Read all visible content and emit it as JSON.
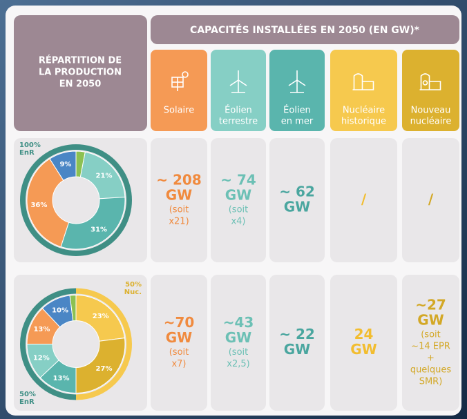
{
  "header": {
    "left_title": [
      "RÉPARTITION DE",
      "LA PRODUCTION",
      "EN 2050"
    ],
    "top_title": "CAPACITÉS INSTALLÉES EN 2050 (EN GW)*"
  },
  "columns": [
    {
      "label": [
        "Solaire"
      ],
      "color": "#f59a55",
      "text_color": "#f08a3e"
    },
    {
      "label": [
        "Éolien",
        "terrestre"
      ],
      "color": "#86cfc5",
      "text_color": "#6cc0b5"
    },
    {
      "label": [
        "Éolien",
        "en mer"
      ],
      "color": "#5ab5ad",
      "text_color": "#4aa69f"
    },
    {
      "label": [
        "Nucléaire",
        "historique"
      ],
      "color": "#f6c94e",
      "text_color": "#f2bd2f"
    },
    {
      "label": [
        "Nouveau",
        "nucléaire"
      ],
      "color": "#dcb12f",
      "text_color": "#d3a826"
    }
  ],
  "rows": [
    {
      "donut": {
        "ring": [
          {
            "value": 100,
            "color": "#3f8f85"
          }
        ],
        "ring_label": [
          "100%",
          "EnR"
        ],
        "segments": [
          {
            "value": 3,
            "color": "#8cc152"
          },
          {
            "value": 21,
            "label": "21%",
            "color": "#86cfc5"
          },
          {
            "value": 31,
            "label": "31%",
            "color": "#5ab5ad"
          },
          {
            "value": 36,
            "label": "36%",
            "color": "#f59a55"
          },
          {
            "value": 9,
            "label": "9%",
            "color": "#4a86c5"
          }
        ]
      },
      "cells": [
        {
          "main": [
            "~ 208",
            "GW"
          ],
          "note": [
            "(soit",
            "x21)"
          ]
        },
        {
          "main": [
            "~ 74",
            "GW"
          ],
          "note": [
            "(soit",
            "x4)"
          ]
        },
        {
          "main": [
            "~ 62",
            "GW"
          ]
        },
        {
          "main": [
            "/"
          ]
        },
        {
          "main": [
            "/"
          ]
        }
      ]
    },
    {
      "donut": {
        "ring": [
          {
            "value": 50,
            "color": "#f6c94e"
          },
          {
            "value": 50,
            "color": "#3f8f85"
          }
        ],
        "top_label": [
          "50%",
          "Nuc."
        ],
        "bottom_label": [
          "50%",
          "EnR"
        ],
        "segments": [
          {
            "value": 23,
            "label": "23%",
            "color": "#f6c94e"
          },
          {
            "value": 27,
            "label": "27%",
            "color": "#dcb12f"
          },
          {
            "value": 13,
            "label": "13%",
            "color": "#5ab5ad"
          },
          {
            "value": 12,
            "label": "12%",
            "color": "#86cfc5"
          },
          {
            "value": 13,
            "label": "13%",
            "color": "#f59a55"
          },
          {
            "value": 10,
            "label": "10%",
            "color": "#4a86c5"
          },
          {
            "value": 2,
            "color": "#8cc152"
          }
        ]
      },
      "cells": [
        {
          "main": [
            "~70",
            "GW"
          ],
          "note": [
            "(soit",
            "x7)"
          ]
        },
        {
          "main": [
            "~43",
            "GW"
          ],
          "note": [
            "(soit",
            "x2,5)"
          ]
        },
        {
          "main": [
            "~ 22",
            "GW"
          ]
        },
        {
          "main": [
            "24",
            "GW"
          ]
        },
        {
          "main": [
            "~27",
            "GW"
          ],
          "note": [
            "(soit",
            "~14 EPR",
            "+",
            "quelques",
            "SMR)"
          ]
        }
      ]
    }
  ]
}
